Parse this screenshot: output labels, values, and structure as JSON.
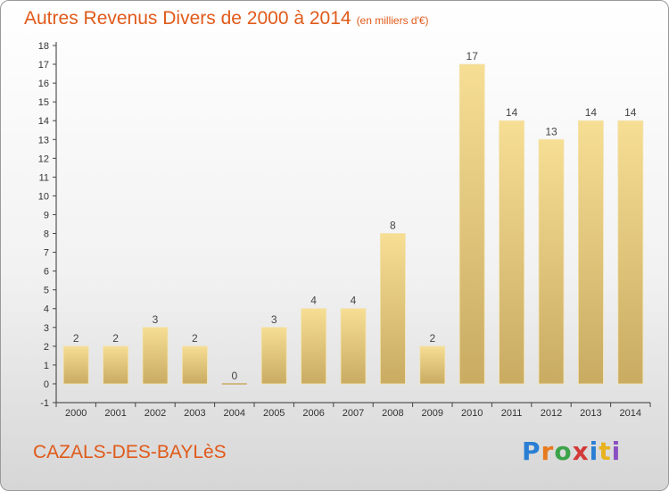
{
  "header": {
    "title": "Autres Revenus Divers de 2000 à 2014",
    "subtitle": "(en milliers d'€)"
  },
  "footer": {
    "commune": "CAZALS-DES-BAYLèS",
    "logo": [
      "P",
      "r",
      "o",
      "x",
      "i",
      "t",
      "i"
    ]
  },
  "colors": {
    "title": "#e05a1a",
    "bar_light": "#f6de94",
    "bar_dark": "#c9ab62",
    "axis": "#333333",
    "grid_tick": "#444444"
  },
  "chart_data": {
    "type": "bar",
    "title": "Autres Revenus Divers de 2000 à 2014",
    "subtitle": "(en milliers d'€)",
    "categories": [
      "2000",
      "2001",
      "2002",
      "2003",
      "2004",
      "2005",
      "2006",
      "2007",
      "2008",
      "2009",
      "2010",
      "2011",
      "2012",
      "2013",
      "2014"
    ],
    "values": [
      2,
      2,
      3,
      2,
      0,
      3,
      4,
      4,
      8,
      2,
      17,
      14,
      13,
      14,
      14
    ],
    "data_labels": [
      "2",
      "2",
      "3",
      "2",
      "0",
      "3",
      "4",
      "4",
      "8",
      "2",
      "17",
      "14",
      "13",
      "14",
      "14"
    ],
    "y_ticks": [
      -1,
      0,
      1,
      2,
      3,
      4,
      5,
      6,
      7,
      8,
      9,
      10,
      11,
      12,
      13,
      14,
      15,
      16,
      17,
      18
    ],
    "ylim": [
      -1,
      18
    ],
    "xlabel": "",
    "ylabel": "",
    "grid": false,
    "legend": "none"
  }
}
